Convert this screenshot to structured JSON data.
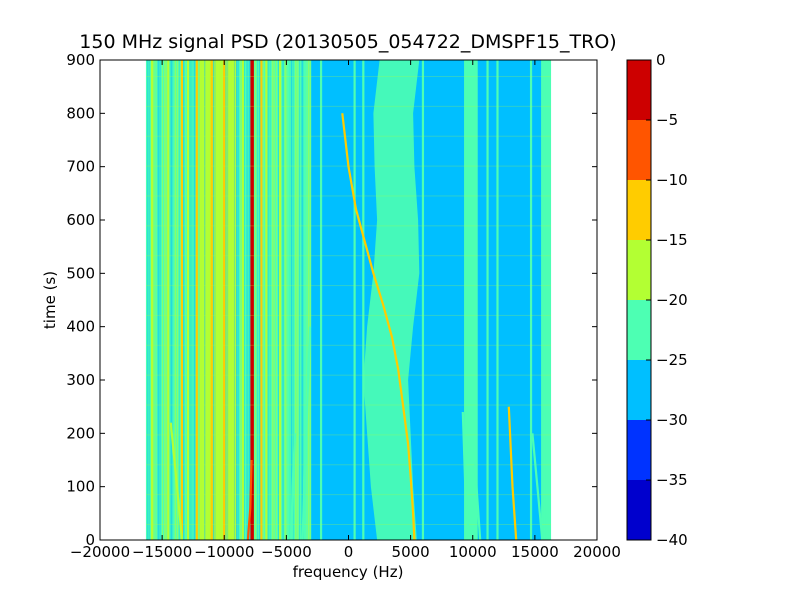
{
  "chart_data": {
    "type": "heatmap",
    "title": "150 MHz signal PSD (20130505_054722_DMSPF15_TRO)",
    "xlabel": "frequency (Hz)",
    "ylabel": "time (s)",
    "xlim": [
      -20000,
      20000
    ],
    "ylim": [
      0,
      900
    ],
    "x_ticks": [
      "−20000",
      "−15000",
      "−10000",
      "−5000",
      "0",
      "5000",
      "10000",
      "15000",
      "20000"
    ],
    "x_tick_values": [
      -20000,
      -15000,
      -10000,
      -5000,
      0,
      5000,
      10000,
      15000,
      20000
    ],
    "y_ticks": [
      "0",
      "100",
      "200",
      "300",
      "400",
      "500",
      "600",
      "700",
      "800",
      "900"
    ],
    "y_tick_values": [
      0,
      100,
      200,
      300,
      400,
      500,
      600,
      700,
      800,
      900
    ],
    "data_extent": {
      "freq_min": -16300,
      "freq_max": 16300
    },
    "background_level": -27.5,
    "colorbar": {
      "levels": [
        -40,
        -35,
        -30,
        -25,
        -20,
        -15,
        -10,
        -5,
        0
      ],
      "tick_labels": [
        "−40",
        "−35",
        "−30",
        "−25",
        "−20",
        "−15",
        "−10",
        "−5",
        "0"
      ],
      "colors": [
        "#0000cd",
        "#0033ff",
        "#00bfff",
        "#4dffb3",
        "#b3ff33",
        "#ffcc00",
        "#ff5500",
        "#cd0000"
      ]
    },
    "vertical_bands": [
      {
        "f0": -16300,
        "f1": -15400,
        "level": -22
      },
      {
        "f0": -15400,
        "f1": -12000,
        "level": -22
      },
      {
        "f0": -12000,
        "f1": -9000,
        "level": -20
      },
      {
        "f0": -9000,
        "f1": -5200,
        "level": -22
      },
      {
        "f0": -5200,
        "f1": -3000,
        "level": -25
      },
      {
        "f0": 9300,
        "f1": 10400,
        "level": -22
      },
      {
        "f0": 15500,
        "f1": 16300,
        "level": -22
      }
    ],
    "vertical_lines": [
      {
        "f": -15800,
        "level": -17
      },
      {
        "f": -14500,
        "level": -17
      },
      {
        "f": -13400,
        "level": -12
      },
      {
        "f": -12900,
        "level": -17
      },
      {
        "f": -12200,
        "level": -12
      },
      {
        "f": -11700,
        "level": -17
      },
      {
        "f": -11000,
        "level": -12
      },
      {
        "f": -10500,
        "level": -17
      },
      {
        "f": -10000,
        "level": -12
      },
      {
        "f": -9300,
        "level": -17
      },
      {
        "f": -8500,
        "level": -17
      },
      {
        "f": -7800,
        "level": -2
      },
      {
        "f": -7000,
        "level": -12
      },
      {
        "f": -6600,
        "level": -17
      },
      {
        "f": -5500,
        "level": -17
      },
      {
        "f": -4800,
        "level": -22
      },
      {
        "f": -3500,
        "level": -22
      },
      {
        "f": -2200,
        "level": -22
      },
      {
        "f": 500,
        "level": -22
      },
      {
        "f": 1200,
        "level": -22
      },
      {
        "f": 6000,
        "level": -22
      },
      {
        "f": 9500,
        "level": -22
      },
      {
        "f": 11200,
        "level": -22
      },
      {
        "f": 12000,
        "level": -22
      },
      {
        "f": 14700,
        "level": -22
      },
      {
        "f": 15800,
        "level": -22
      }
    ],
    "noise_band": {
      "level": -22,
      "points": [
        {
          "t": 0,
          "f0": 2300,
          "f1": 5500
        },
        {
          "t": 100,
          "f0": 1800,
          "f1": 5200
        },
        {
          "t": 200,
          "f0": 1500,
          "f1": 5000
        },
        {
          "t": 300,
          "f0": 1200,
          "f1": 4800
        },
        {
          "t": 400,
          "f0": 1500,
          "f1": 5200
        },
        {
          "t": 500,
          "f0": 2000,
          "f1": 5700
        },
        {
          "t": 600,
          "f0": 2300,
          "f1": 5600
        },
        {
          "t": 700,
          "f0": 2100,
          "f1": 5300
        },
        {
          "t": 800,
          "f0": 2000,
          "f1": 5200
        },
        {
          "t": 900,
          "f0": 2500,
          "f1": 5700
        }
      ]
    },
    "traces": [
      {
        "name": "",
        "level": -17,
        "points": [
          [
            -13400,
            0
          ],
          [
            -13800,
            100
          ],
          [
            -14300,
            220
          ]
        ]
      },
      {
        "name": "",
        "level": -10,
        "points": [
          [
            -8100,
            0
          ],
          [
            -7900,
            60
          ],
          [
            -7800,
            150
          ]
        ]
      },
      {
        "name": "",
        "level": -22,
        "points": [
          [
            -4600,
            0
          ],
          [
            -4500,
            100
          ],
          [
            -4300,
            200
          ]
        ]
      },
      {
        "name": "",
        "level": -22,
        "points": [
          [
            -3700,
            0
          ],
          [
            -3400,
            200
          ],
          [
            -3100,
            400
          ]
        ]
      },
      {
        "name": "",
        "level": -15,
        "points": [
          [
            -500,
            800
          ],
          [
            0,
            700
          ],
          [
            600,
            620
          ],
          [
            1300,
            560
          ],
          [
            2000,
            500
          ],
          [
            2800,
            440
          ],
          [
            3500,
            380
          ],
          [
            4000,
            320
          ],
          [
            4400,
            250
          ],
          [
            4800,
            180
          ],
          [
            5000,
            120
          ],
          [
            5200,
            50
          ],
          [
            5300,
            0
          ]
        ]
      },
      {
        "name": "",
        "level": -22,
        "points": [
          [
            9700,
            0
          ],
          [
            9400,
            100
          ],
          [
            9200,
            240
          ]
        ]
      },
      {
        "name": "",
        "level": -22,
        "points": [
          [
            10600,
            0
          ],
          [
            10300,
            100
          ],
          [
            10200,
            150
          ]
        ]
      },
      {
        "name": "",
        "level": -15,
        "points": [
          [
            13500,
            0
          ],
          [
            13200,
            100
          ],
          [
            12900,
            250
          ]
        ]
      },
      {
        "name": "",
        "level": -22,
        "points": [
          [
            15600,
            0
          ],
          [
            15200,
            100
          ],
          [
            14800,
            200
          ]
        ]
      }
    ]
  }
}
